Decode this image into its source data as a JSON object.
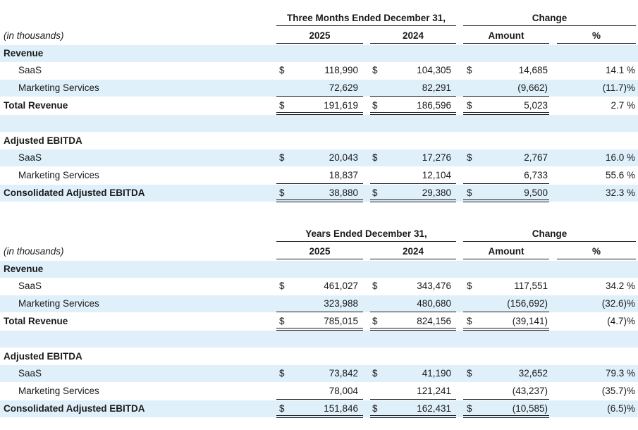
{
  "tables": [
    {
      "period_header": "Three Months Ended December 31,",
      "change_header": "Change",
      "units_label": "(in thousands)",
      "col_2025": "2025",
      "col_2024": "2024",
      "col_amount": "Amount",
      "col_pct": "%",
      "currency": "$",
      "revenue_title": "Revenue",
      "ebitda_title": "Adjusted EBITDA",
      "revenue": {
        "saas": {
          "label": "SaaS",
          "v2025": "118,990",
          "v2024": "104,305",
          "amount": "14,685",
          "pct": "14.1 %"
        },
        "mkt": {
          "label": "Marketing Services",
          "v2025": "72,629",
          "v2024": "82,291",
          "amount": "(9,662)",
          "pct": "(11.7)%"
        },
        "total": {
          "label": "Total Revenue",
          "v2025": "191,619",
          "v2024": "186,596",
          "amount": "5,023",
          "pct": "2.7 %"
        }
      },
      "ebitda": {
        "saas": {
          "label": "SaaS",
          "v2025": "20,043",
          "v2024": "17,276",
          "amount": "2,767",
          "pct": "16.0 %"
        },
        "mkt": {
          "label": "Marketing Services",
          "v2025": "18,837",
          "v2024": "12,104",
          "amount": "6,733",
          "pct": "55.6 %"
        },
        "total": {
          "label": "Consolidated Adjusted EBITDA",
          "v2025": "38,880",
          "v2024": "29,380",
          "amount": "9,500",
          "pct": "32.3 %"
        }
      }
    },
    {
      "period_header": "Years Ended December 31,",
      "change_header": "Change",
      "units_label": "(in thousands)",
      "col_2025": "2025",
      "col_2024": "2024",
      "col_amount": "Amount",
      "col_pct": "%",
      "currency": "$",
      "revenue_title": "Revenue",
      "ebitda_title": "Adjusted EBITDA",
      "revenue": {
        "saas": {
          "label": "SaaS",
          "v2025": "461,027",
          "v2024": "343,476",
          "amount": "117,551",
          "pct": "34.2 %"
        },
        "mkt": {
          "label": "Marketing Services",
          "v2025": "323,988",
          "v2024": "480,680",
          "amount": "(156,692)",
          "pct": "(32.6)%"
        },
        "total": {
          "label": "Total Revenue",
          "v2025": "785,015",
          "v2024": "824,156",
          "amount": "(39,141)",
          "pct": "(4.7)%"
        }
      },
      "ebitda": {
        "saas": {
          "label": "SaaS",
          "v2025": "73,842",
          "v2024": "41,190",
          "amount": "32,652",
          "pct": "79.3 %"
        },
        "mkt": {
          "label": "Marketing Services",
          "v2025": "78,004",
          "v2024": "121,241",
          "amount": "(43,237)",
          "pct": "(35.7)%"
        },
        "total": {
          "label": "Consolidated Adjusted EBITDA",
          "v2025": "151,846",
          "v2024": "162,431",
          "amount": "(10,585)",
          "pct": "(6.5)%"
        }
      }
    }
  ]
}
